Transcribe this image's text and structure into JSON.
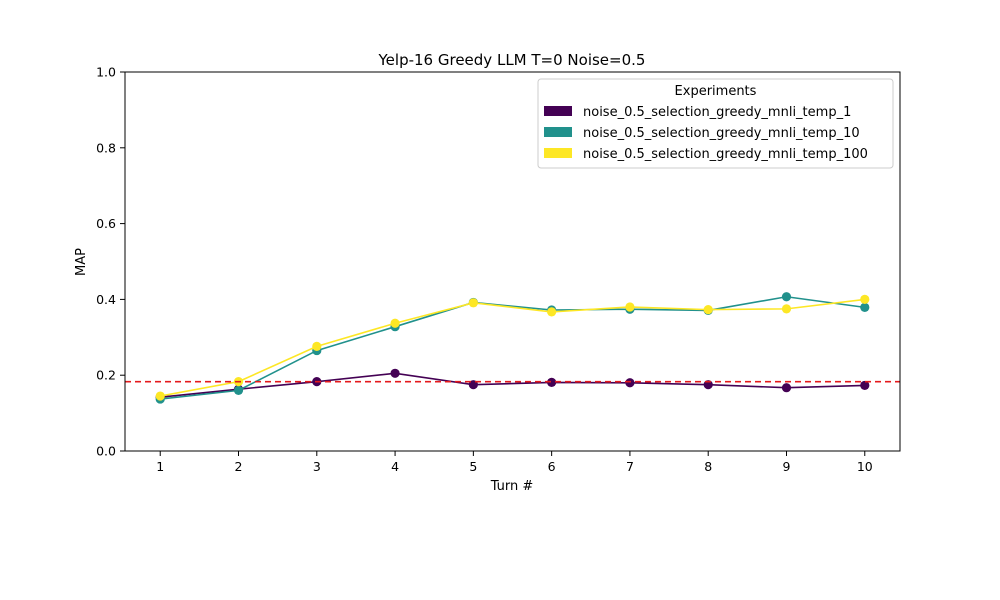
{
  "chart_data": {
    "type": "line",
    "title": "Yelp-16 Greedy LLM T=0 Noise=0.5",
    "xlabel": "Turn #",
    "ylabel": "MAP",
    "x": [
      1,
      2,
      3,
      4,
      5,
      6,
      7,
      8,
      9,
      10
    ],
    "xlim": [
      0.55,
      10.45
    ],
    "ylim": [
      0,
      1
    ],
    "x_ticks": [
      "1",
      "2",
      "3",
      "4",
      "5",
      "6",
      "7",
      "8",
      "9",
      "10"
    ],
    "y_ticks": [
      "0.0",
      "0.2",
      "0.4",
      "0.6",
      "0.8",
      "1.0"
    ],
    "grid": false,
    "legend": {
      "title": "Experiments",
      "placement": "top-right"
    },
    "reference_line": {
      "y": 0.183,
      "color": "#e41a1c",
      "style": "dashed"
    },
    "series": [
      {
        "name": "noise_0.5_selection_greedy_mnli_temp_1",
        "color": "#440154",
        "values": [
          0.142,
          0.163,
          0.183,
          0.205,
          0.175,
          0.181,
          0.18,
          0.175,
          0.167,
          0.173
        ]
      },
      {
        "name": "noise_0.5_selection_greedy_mnli_temp_10",
        "color": "#21918c",
        "values": [
          0.137,
          0.16,
          0.265,
          0.328,
          0.392,
          0.372,
          0.374,
          0.371,
          0.407,
          0.379
        ]
      },
      {
        "name": "noise_0.5_selection_greedy_mnli_temp_100",
        "color": "#fde725",
        "values": [
          0.145,
          0.183,
          0.276,
          0.337,
          0.391,
          0.367,
          0.38,
          0.373,
          0.375,
          0.4
        ]
      }
    ]
  }
}
